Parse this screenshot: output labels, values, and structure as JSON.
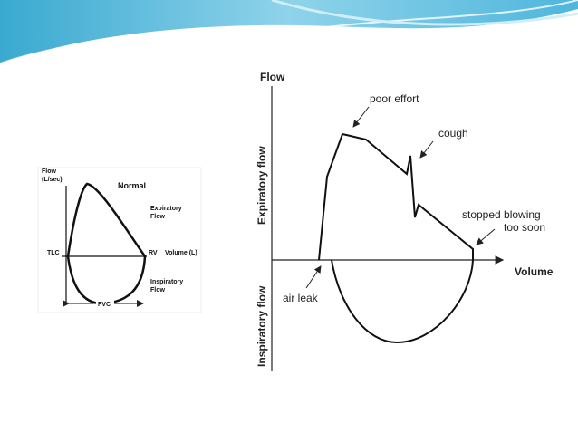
{
  "left_figure": {
    "y_axis": [
      "Flow",
      "(L/sec)"
    ],
    "title": "Normal",
    "expiratory": [
      "Expiratory",
      "Flow"
    ],
    "tlc": "TLC",
    "rv": "RV",
    "x_axis": "Volume (L)",
    "inspiratory": [
      "Inspiratory",
      "Flow"
    ],
    "fvc": "FVC"
  },
  "right_figure": {
    "y_axis": "Flow",
    "expiratory_axis": "Expiratory flow",
    "inspiratory_axis": "Inspiratory flow",
    "x_axis": "Volume",
    "annotations": {
      "poor_effort": "poor effort",
      "cough": "cough",
      "stopped": [
        "stopped blowing",
        "too soon"
      ],
      "air_leak": "air leak"
    }
  }
}
